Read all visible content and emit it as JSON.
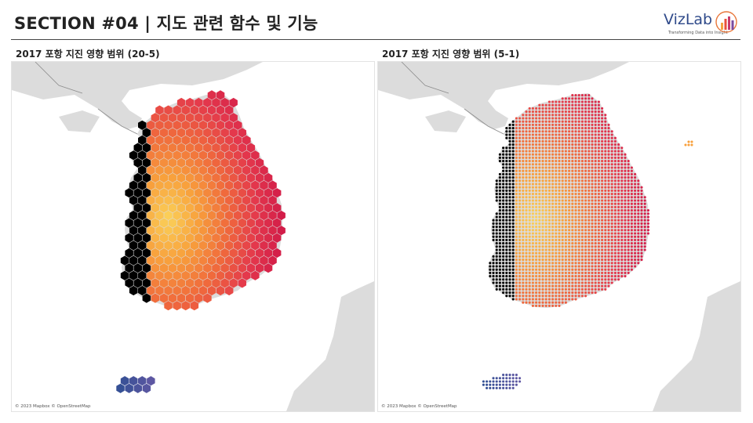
{
  "header": {
    "title": "SECTION #04 | 지도 관련 함수 및 기능",
    "logo_text": "VizLab",
    "logo_tagline": "Transforming Data into Insight"
  },
  "maps": [
    {
      "title": "2017 포항 지진 영향 범위 (20-5)",
      "attribution": "© 2023 Mapbox © OpenStreetMap",
      "mark": "hexagon"
    },
    {
      "title": "2017 포항 지진 영향 범위 (5-1)",
      "attribution": "© 2023 Mapbox © OpenStreetMap",
      "mark": "dot"
    }
  ],
  "colors": {
    "land": "#dcdcdc",
    "water": "#ffffff",
    "border": "#8c8c8c",
    "ramp": [
      "#f7c04a",
      "#f89a3c",
      "#f06a3c",
      "#e2364a",
      "#d01a4a",
      "#e64a7a",
      "#c04aa0",
      "#8a5aa8",
      "#3a5fa0",
      "#24468a"
    ]
  }
}
